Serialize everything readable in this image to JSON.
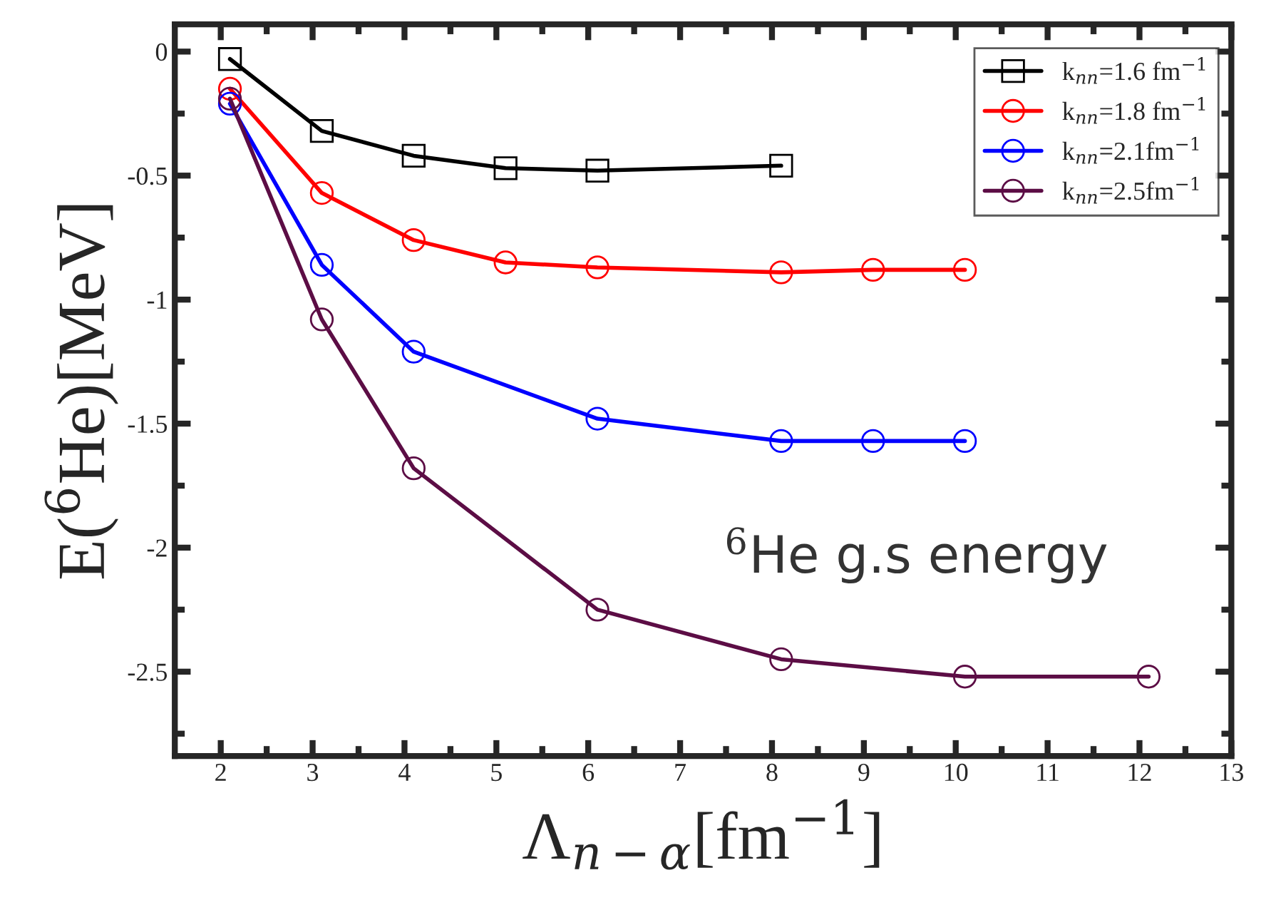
{
  "chart_data": {
    "type": "line",
    "xlabel": "Λ$_{n−α}$[fm$^{−1}$]",
    "ylabel": "E($^{6}$He)[MeV]",
    "annotations": [
      "$^{6}$He g.s energy"
    ],
    "xlim": [
      1.5,
      13
    ],
    "ylim": [
      -2.84,
      0.11
    ],
    "xticks": [
      2,
      {
        "value": 2.5,
        "label": null
      },
      3,
      {
        "value": 3.5,
        "label": null
      },
      4,
      {
        "value": 4.5,
        "label": null
      },
      5,
      {
        "value": 5.5,
        "label": null
      },
      6,
      {
        "value": 6.5,
        "label": null
      },
      7,
      {
        "value": 7.5,
        "label": null
      },
      8,
      {
        "value": 8.5,
        "label": null
      },
      9,
      {
        "value": 9.5,
        "label": null
      },
      10,
      {
        "value": 10.5,
        "label": null
      },
      11,
      {
        "value": 11.5,
        "label": null
      },
      12,
      {
        "value": 12.5,
        "label": null
      },
      13
    ],
    "yticks": [
      {
        "value": 0,
        "label": "0"
      },
      {
        "value": -0.25,
        "label": null
      },
      {
        "value": -0.5,
        "label": "-0.5"
      },
      {
        "value": -0.75,
        "label": null
      },
      {
        "value": -1,
        "label": "-1"
      },
      {
        "value": -1.25,
        "label": null
      },
      {
        "value": -1.5,
        "label": "-1.5"
      },
      {
        "value": -1.75,
        "label": null
      },
      {
        "value": -2,
        "label": "-2"
      },
      {
        "value": -2.25,
        "label": null
      },
      {
        "value": -2.5,
        "label": "-2.5"
      },
      {
        "value": -2.75,
        "label": null
      }
    ],
    "grid": false,
    "legend": "top right",
    "line_style": "solid",
    "series": [
      {
        "name": "k$_{nn}$=1.6 fm$^{−1}$",
        "color": "#000000",
        "marker": "square",
        "x": [
          2.1,
          3.1,
          4.1,
          5.1,
          6.1,
          8.1
        ],
        "values": [
          -0.03,
          -0.32,
          -0.42,
          -0.47,
          -0.48,
          -0.46
        ]
      },
      {
        "name": "k$_{nn}$=1.8 fm$^{−1}$",
        "color": "#ff0000",
        "marker": "circle",
        "x": [
          2.1,
          3.1,
          4.1,
          5.1,
          6.1,
          8.1,
          9.1,
          10.1
        ],
        "values": [
          -0.15,
          -0.57,
          -0.76,
          -0.85,
          -0.87,
          -0.89,
          -0.88,
          -0.88
        ]
      },
      {
        "name": "k$_{nn}$=2.1fm$^{−1}$",
        "color": "#0000ff",
        "marker": "circle",
        "x": [
          2.1,
          3.1,
          4.1,
          6.1,
          8.1,
          9.1,
          10.1
        ],
        "values": [
          -0.21,
          -0.86,
          -1.21,
          -1.48,
          -1.57,
          -1.57,
          -1.57
        ]
      },
      {
        "name": "k$_{nn}$=2.5fm$^{−1}$",
        "color": "#5c0d45",
        "marker": "circle",
        "x": [
          2.1,
          3.1,
          4.1,
          6.1,
          8.1,
          10.1,
          12.1
        ],
        "values": [
          -0.19,
          -1.08,
          -1.68,
          -2.25,
          -2.45,
          -2.52,
          -2.52
        ]
      }
    ]
  }
}
